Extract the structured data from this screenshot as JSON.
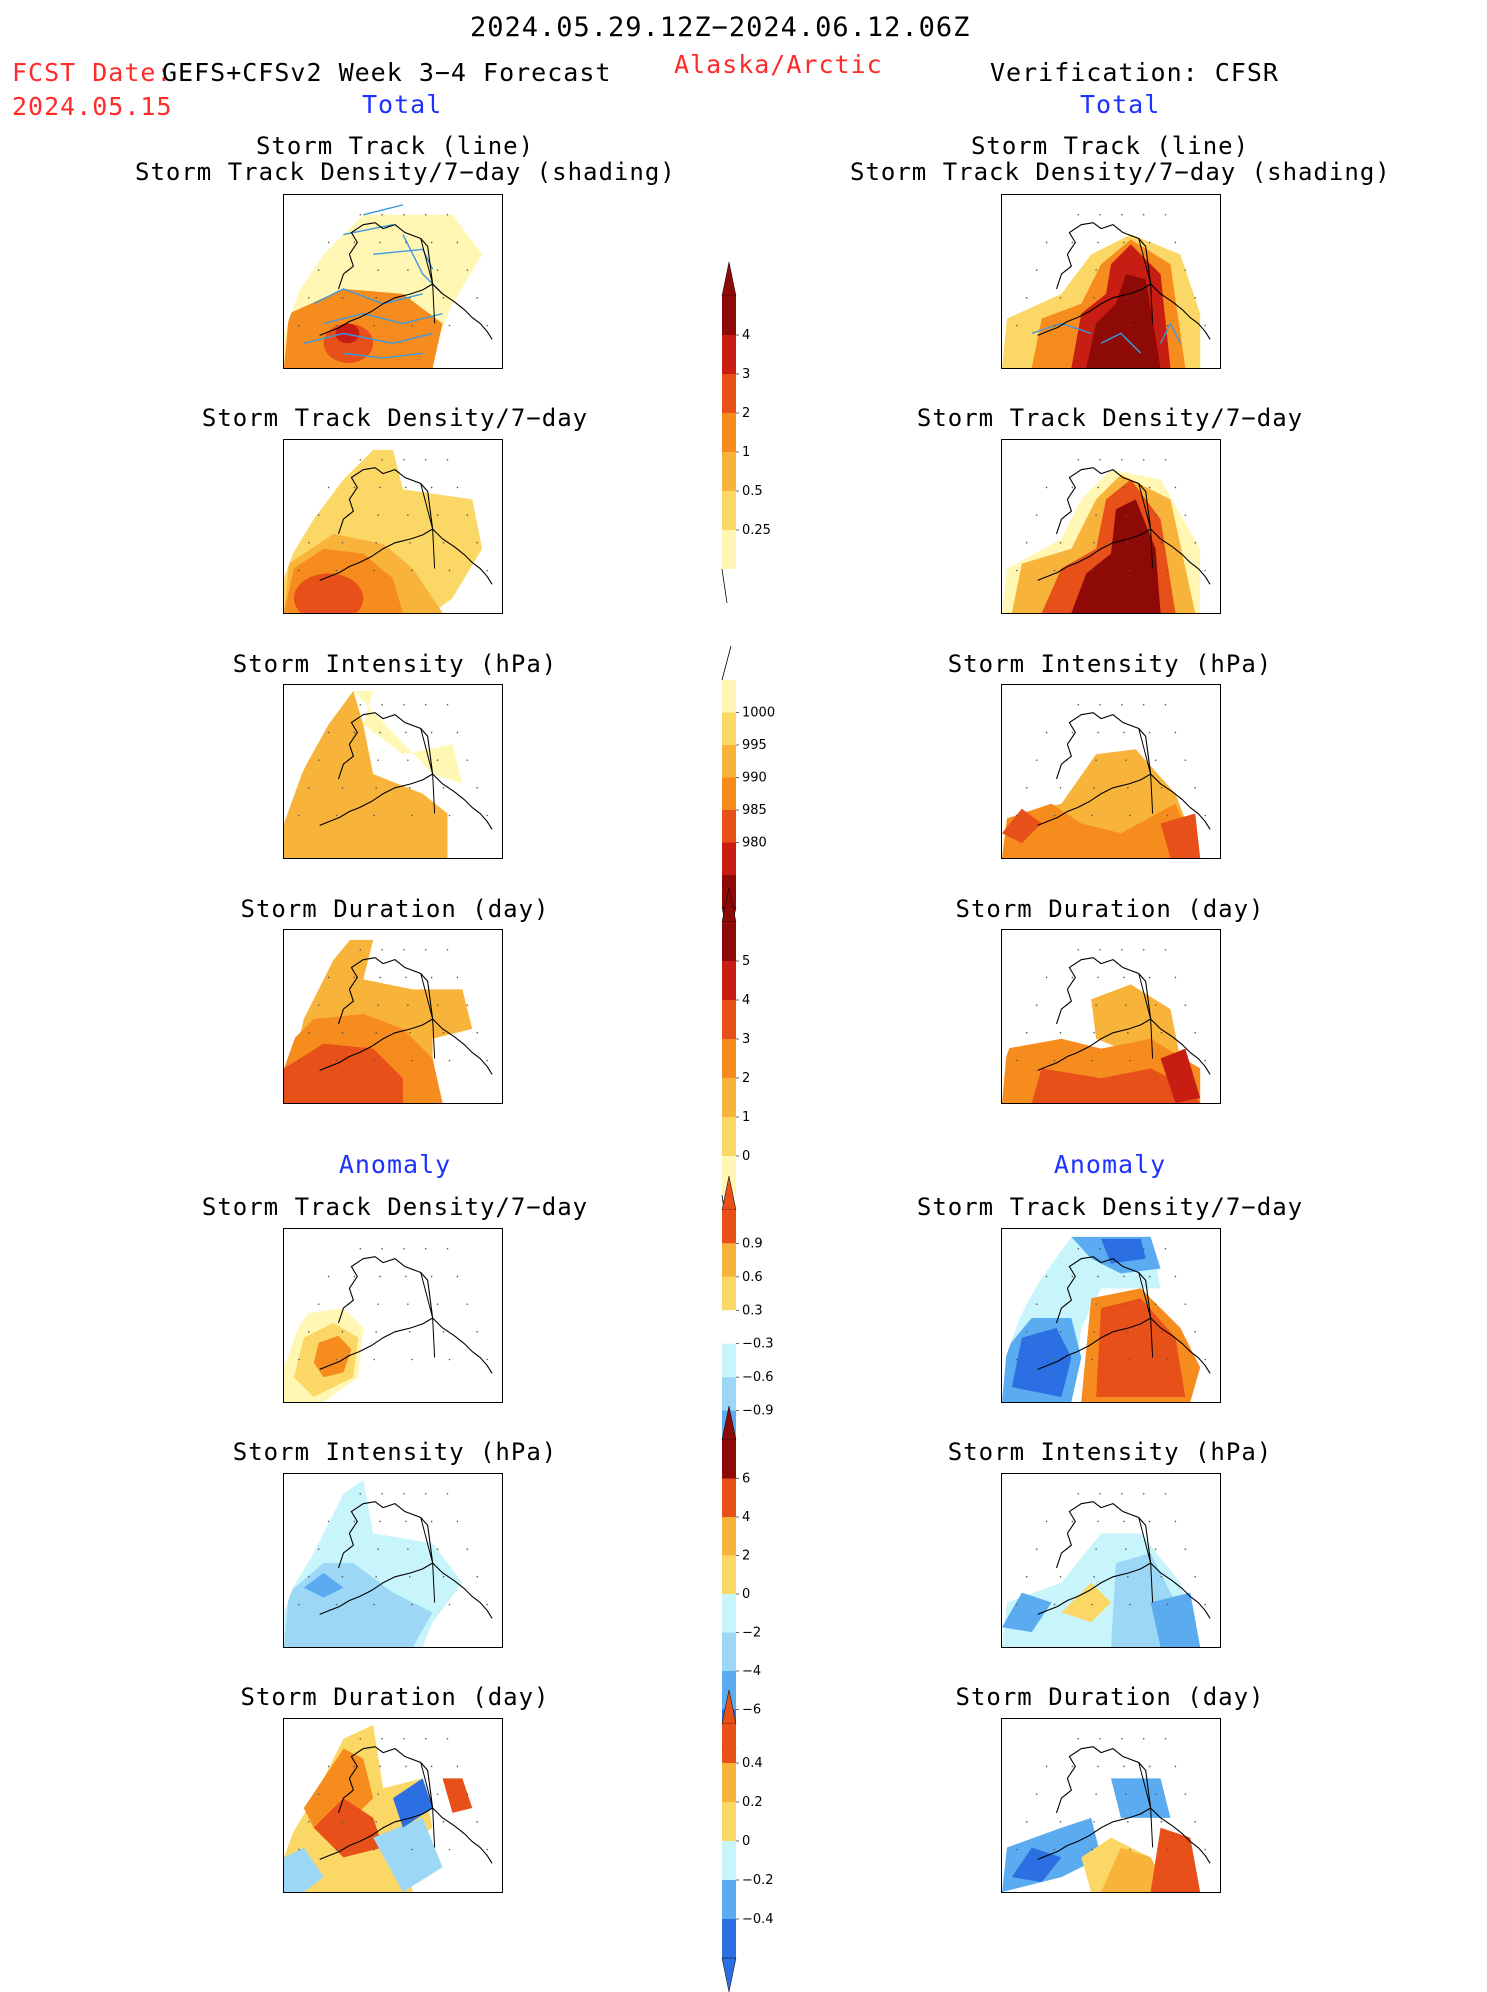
{
  "header": {
    "period": "2024.05.29.12Z−2024.06.12.06Z",
    "fcst_label": "FCST Date:",
    "model": "GEFS+CFSv2 Week 3−4 Forecast",
    "fcst_date": "2024.05.15",
    "region": "Alaska/Arctic",
    "verification": "Verification: CFSR",
    "left_total": "Total",
    "right_total": "Total"
  },
  "titles": {
    "track_line": "Storm Track (line)",
    "track_shading": "Storm Track Density/7−day (shading)",
    "density": "Storm Track Density/7−day",
    "intensity": "Storm Intensity (hPa)",
    "duration": "Storm Duration (day)",
    "anomaly_left": "Anomaly",
    "anomaly_right": "Anomaly"
  },
  "colors": {
    "warm": [
      "#fff7b3",
      "#fbd865",
      "#f8b43a",
      "#f78c1e",
      "#e8501a",
      "#c71d12",
      "#8e0a06"
    ],
    "cool": [
      "#c8f4fb",
      "#9cd8f6",
      "#5aabf0",
      "#2c6fe2"
    ],
    "track_line": "#3a9ae0",
    "map_line": "#000000"
  },
  "colorbars": {
    "density": [
      "4",
      "3",
      "2",
      "1",
      "0.5",
      "0.25"
    ],
    "intensity": [
      "1000",
      "995",
      "990",
      "985",
      "980"
    ],
    "duration": [
      "5",
      "4",
      "3",
      "2",
      "1",
      "0"
    ],
    "density_anomaly": [
      "0.9",
      "0.6",
      "0.3",
      "−0.3",
      "−0.6",
      "−0.9"
    ],
    "intensity_anomaly": [
      "6",
      "4",
      "2",
      "0",
      "−2",
      "−4",
      "−6"
    ],
    "duration_anomaly": [
      "0.4",
      "0.2",
      "0",
      "−0.2",
      "−0.4"
    ]
  }
}
